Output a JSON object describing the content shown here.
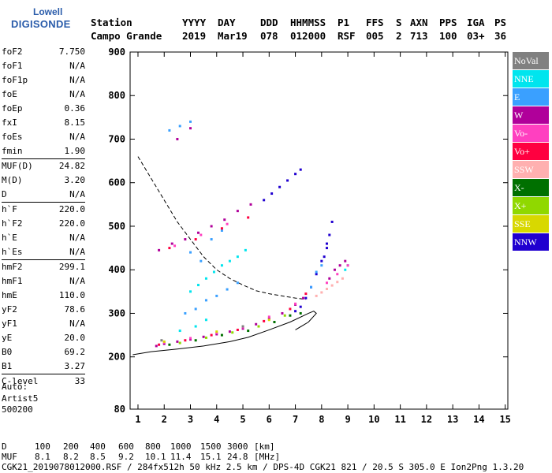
{
  "logo": {
    "line1": "Lowell",
    "line2": "DIGISONDE"
  },
  "header": {
    "row1": [
      "Station",
      "YYYY",
      "DAY",
      "DDD",
      "HHMMSS",
      "P1",
      "FFS",
      "S",
      "AXN",
      "PPS",
      "IGA",
      "PS"
    ],
    "row2": [
      "Campo Grande",
      "2019",
      "Mar19",
      "078",
      "012000",
      "RSF",
      "005",
      "2",
      "713",
      "100",
      "03+",
      "36"
    ]
  },
  "params": [
    {
      "k": "foF2",
      "v": "7.750"
    },
    {
      "k": "foF1",
      "v": "N/A"
    },
    {
      "k": "foF1p",
      "v": "N/A"
    },
    {
      "k": "foE",
      "v": "N/A"
    },
    {
      "k": "foEp",
      "v": "0.36"
    },
    {
      "k": "fxI",
      "v": "8.15"
    },
    {
      "k": "foEs",
      "v": "N/A"
    },
    {
      "k": "fmin",
      "v": "1.90"
    },
    {
      "k": "MUF(D)",
      "v": "24.82"
    },
    {
      "k": "M(D)",
      "v": "3.20"
    },
    {
      "k": "D",
      "v": "N/A"
    },
    {
      "k": "h`F",
      "v": "220.0"
    },
    {
      "k": "h`F2",
      "v": "220.0"
    },
    {
      "k": "h`E",
      "v": "N/A"
    },
    {
      "k": "h`Es",
      "v": "N/A"
    },
    {
      "k": "hmF2",
      "v": "299.1"
    },
    {
      "k": "hmF1",
      "v": "N/A"
    },
    {
      "k": "hmE",
      "v": "110.0"
    },
    {
      "k": "yF2",
      "v": "78.6"
    },
    {
      "k": "yF1",
      "v": "N/A"
    },
    {
      "k": "yE",
      "v": "20.0"
    },
    {
      "k": "B0",
      "v": "69.2"
    },
    {
      "k": "B1",
      "v": "3.27"
    },
    {
      "k": "C-level",
      "v": "33"
    }
  ],
  "param_groups": [
    8,
    3,
    4,
    8,
    1
  ],
  "auto": {
    "l1": "Auto:",
    "l2": "Artist5",
    "l3": "500200"
  },
  "legend": [
    {
      "label": "NoVal",
      "color": "#808080"
    },
    {
      "label": "NNE",
      "color": "#00e5ee"
    },
    {
      "label": "E",
      "color": "#3aa0ff"
    },
    {
      "label": "W",
      "color": "#b0009a"
    },
    {
      "label": "Vo-",
      "color": "#ff40c0"
    },
    {
      "label": "Vo+",
      "color": "#ff0040"
    },
    {
      "label": "SSW",
      "color": "#ffb0b0"
    },
    {
      "label": "X-",
      "color": "#007000"
    },
    {
      "label": "X+",
      "color": "#90d800"
    },
    {
      "label": "SSE",
      "color": "#d8d800"
    },
    {
      "label": "NNW",
      "color": "#2000d0"
    }
  ],
  "footer": {
    "row1": {
      "label": "D",
      "values": [
        "100",
        "200",
        "400",
        "600",
        "800",
        "1000",
        "1500",
        "3000"
      ],
      "unit": "[km]"
    },
    "row2": {
      "label": "MUF",
      "values": [
        "8.1",
        "8.2",
        "8.5",
        "9.2",
        "10.1",
        "11.4",
        "15.1",
        "24.8"
      ],
      "unit": "[MHz]"
    },
    "row3": "CGK21_2019078012000.RSF / 284fx512h 50 kHz 2.5 km / DPS-4D CGK21 821 / 20.5 S 305.0 E Ion2Png 1.3.20"
  },
  "chart_data": {
    "type": "scatter",
    "title": "",
    "xlabel": "",
    "ylabel": "",
    "xlim": [
      0.7,
      15.1
    ],
    "ylim": [
      80,
      900
    ],
    "xticks": [
      1,
      2,
      3,
      4,
      5,
      6,
      7,
      8,
      9,
      10,
      11,
      12,
      13,
      14,
      15
    ],
    "yticks": [
      80,
      200,
      300,
      400,
      500,
      600,
      700,
      800,
      900
    ],
    "grid": false,
    "legend_position": "right",
    "series": [
      {
        "color": "#2000d0",
        "points": [
          [
            5.8,
            560
          ],
          [
            6.1,
            575
          ],
          [
            6.4,
            590
          ],
          [
            6.7,
            605
          ],
          [
            7.0,
            620
          ],
          [
            7.2,
            630
          ],
          [
            7.0,
            305
          ],
          [
            7.2,
            315
          ],
          [
            7.4,
            335
          ],
          [
            7.6,
            360
          ],
          [
            7.8,
            390
          ],
          [
            8.0,
            420
          ],
          [
            8.2,
            450
          ],
          [
            8.3,
            480
          ],
          [
            8.4,
            510
          ],
          [
            8.1,
            430
          ],
          [
            8.2,
            460
          ]
        ]
      },
      {
        "color": "#3aa0ff",
        "points": [
          [
            2.8,
            300
          ],
          [
            3.2,
            310
          ],
          [
            3.6,
            330
          ],
          [
            4.0,
            340
          ],
          [
            4.4,
            355
          ],
          [
            4.8,
            370
          ],
          [
            3.0,
            440
          ],
          [
            3.4,
            420
          ],
          [
            3.8,
            470
          ],
          [
            4.2,
            490
          ],
          [
            7.6,
            360
          ],
          [
            7.8,
            395
          ],
          [
            8.0,
            410
          ],
          [
            2.2,
            720
          ],
          [
            2.6,
            730
          ],
          [
            3.0,
            740
          ]
        ]
      },
      {
        "color": "#00e5ee",
        "points": [
          [
            3.0,
            350
          ],
          [
            3.3,
            365
          ],
          [
            3.6,
            380
          ],
          [
            3.9,
            395
          ],
          [
            4.2,
            410
          ],
          [
            4.5,
            420
          ],
          [
            4.8,
            430
          ],
          [
            5.1,
            445
          ],
          [
            3.2,
            270
          ],
          [
            3.6,
            285
          ],
          [
            2.6,
            260
          ],
          [
            8.9,
            400
          ],
          [
            9.0,
            410
          ]
        ]
      },
      {
        "color": "#b0009a",
        "points": [
          [
            1.7,
            225
          ],
          [
            2.0,
            230
          ],
          [
            2.5,
            235
          ],
          [
            3.0,
            240
          ],
          [
            3.5,
            246
          ],
          [
            4.0,
            252
          ],
          [
            4.5,
            258
          ],
          [
            5.0,
            265
          ],
          [
            5.5,
            275
          ],
          [
            6.0,
            288
          ],
          [
            6.5,
            300
          ],
          [
            7.0,
            320
          ],
          [
            7.3,
            335
          ],
          [
            1.8,
            445
          ],
          [
            2.3,
            460
          ],
          [
            2.8,
            470
          ],
          [
            3.3,
            485
          ],
          [
            3.8,
            500
          ],
          [
            4.3,
            515
          ],
          [
            4.8,
            535
          ],
          [
            5.3,
            550
          ],
          [
            8.3,
            380
          ],
          [
            8.5,
            400
          ],
          [
            8.7,
            410
          ],
          [
            8.9,
            420
          ],
          [
            2.5,
            700
          ],
          [
            3.0,
            725
          ]
        ]
      },
      {
        "color": "#ff40c0",
        "points": [
          [
            2.0,
            233
          ],
          [
            3.0,
            243
          ],
          [
            4.0,
            255
          ],
          [
            5.0,
            268
          ],
          [
            6.0,
            292
          ],
          [
            7.0,
            322
          ],
          [
            8.2,
            370
          ],
          [
            8.6,
            390
          ],
          [
            9.0,
            410
          ],
          [
            2.4,
            455
          ],
          [
            3.4,
            480
          ],
          [
            4.4,
            505
          ]
        ]
      },
      {
        "color": "#ff0040",
        "points": [
          [
            1.8,
            228
          ],
          [
            2.8,
            238
          ],
          [
            3.8,
            250
          ],
          [
            4.8,
            262
          ],
          [
            5.8,
            282
          ],
          [
            6.8,
            310
          ],
          [
            7.4,
            345
          ],
          [
            2.2,
            450
          ],
          [
            3.2,
            470
          ],
          [
            4.2,
            495
          ],
          [
            5.2,
            520
          ]
        ]
      },
      {
        "color": "#ffb0b0",
        "points": [
          [
            7.8,
            340
          ],
          [
            8.0,
            348
          ],
          [
            8.2,
            356
          ],
          [
            8.4,
            364
          ],
          [
            8.6,
            372
          ],
          [
            8.8,
            380
          ]
        ]
      },
      {
        "color": "#007000",
        "points": [
          [
            2.2,
            228
          ],
          [
            3.2,
            238
          ],
          [
            4.2,
            250
          ],
          [
            5.2,
            260
          ],
          [
            6.2,
            280
          ],
          [
            6.8,
            295
          ],
          [
            7.2,
            300
          ]
        ]
      },
      {
        "color": "#90d800",
        "points": [
          [
            2.6,
            232
          ],
          [
            3.6,
            244
          ],
          [
            4.6,
            256
          ],
          [
            5.6,
            270
          ],
          [
            6.6,
            295
          ]
        ]
      },
      {
        "color": "#d8d800",
        "points": [
          [
            2.0,
            235
          ],
          [
            4.0,
            258
          ],
          [
            6.0,
            285
          ]
        ]
      },
      {
        "color": "#808080",
        "points": [
          [
            1.9,
            238
          ],
          [
            5.0,
            270
          ]
        ]
      }
    ],
    "profile": [
      [
        0.8,
        205
      ],
      [
        1.5,
        212
      ],
      [
        2.5,
        218
      ],
      [
        3.5,
        225
      ],
      [
        4.5,
        235
      ],
      [
        5.2,
        245
      ],
      [
        6.0,
        262
      ],
      [
        6.8,
        280
      ],
      [
        7.5,
        300
      ],
      [
        7.7,
        305
      ],
      [
        7.8,
        300
      ],
      [
        7.5,
        280
      ],
      [
        7.0,
        262
      ]
    ],
    "muf_curve": [
      [
        1.0,
        660
      ],
      [
        1.5,
        610
      ],
      [
        2.0,
        560
      ],
      [
        2.5,
        510
      ],
      [
        3.0,
        470
      ],
      [
        3.5,
        430
      ],
      [
        4.0,
        400
      ],
      [
        4.5,
        380
      ],
      [
        5.0,
        365
      ],
      [
        5.5,
        352
      ],
      [
        6.0,
        345
      ],
      [
        6.5,
        340
      ],
      [
        7.0,
        335
      ],
      [
        7.4,
        332
      ]
    ]
  }
}
